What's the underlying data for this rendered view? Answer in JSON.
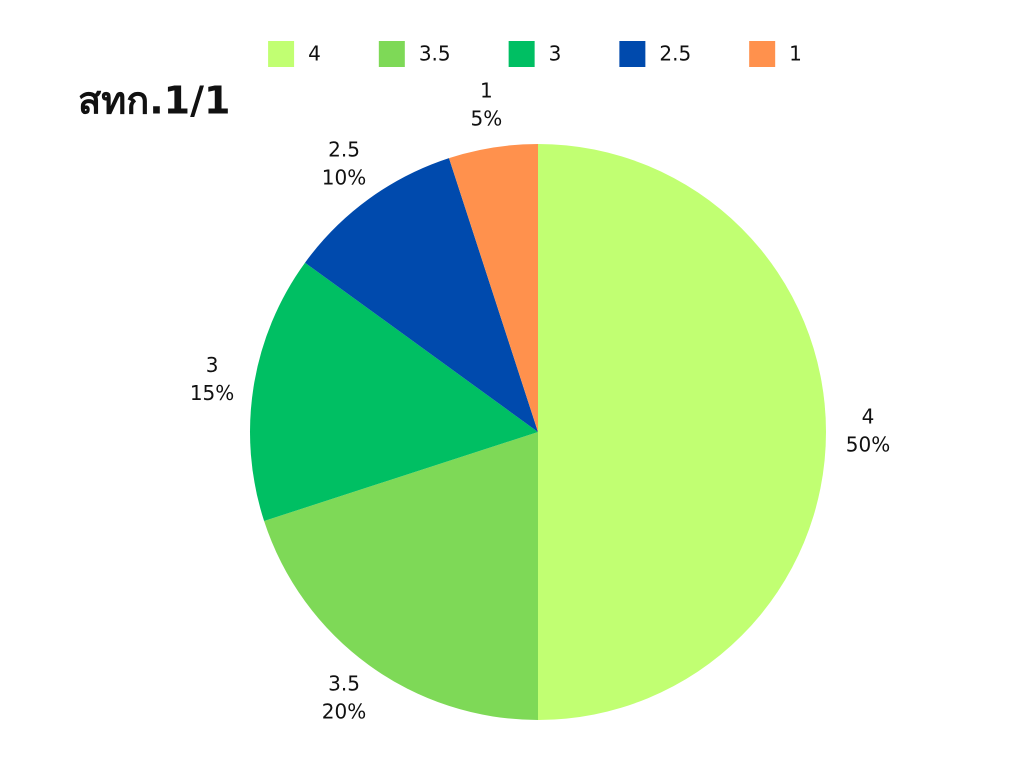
{
  "chart_data": {
    "type": "pie",
    "title": "สทก.1/1",
    "categories": [
      "4",
      "3.5",
      "3",
      "2.5",
      "1"
    ],
    "values": [
      50,
      20,
      15,
      10,
      5
    ],
    "value_labels": [
      "50%",
      "20%",
      "15%",
      "10%",
      "5%"
    ],
    "colors": [
      "#c1ff72",
      "#7ed957",
      "#00bf63",
      "#004aad",
      "#ff914d"
    ],
    "legend": "top"
  }
}
